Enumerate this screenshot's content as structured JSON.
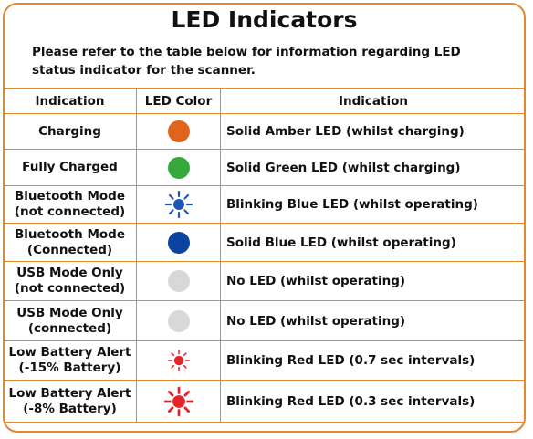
{
  "title": "LED Indicators",
  "intro": "Please refer to the table below for information regarding LED status indicator for the scanner.",
  "headers": {
    "indication": "Indication",
    "led_color": "LED Color",
    "description": "Indication"
  },
  "colors": {
    "border": "#e4892b",
    "amber": "#e0641c",
    "green": "#36a93c",
    "blue": "#0a43a0",
    "blue_blink": "#1d57b5",
    "grey": "#d8d8d8",
    "red": "#e8232a"
  },
  "rows": [
    {
      "line1": "Charging",
      "line2": "",
      "led": "amber-solid",
      "description": "Solid Amber LED (whilst charging)"
    },
    {
      "line1": "Fully Charged",
      "line2": "",
      "led": "green-solid",
      "description": "Solid Green LED (whilst charging)"
    },
    {
      "line1": "Bluetooth Mode",
      "line2": "(not connected)",
      "led": "blue-blinking",
      "description": "Blinking Blue LED (whilst operating)"
    },
    {
      "line1": "Bluetooth Mode",
      "line2": "(Connected)",
      "led": "blue-solid",
      "description": "Solid Blue LED (whilst operating)"
    },
    {
      "line1": "USB Mode Only",
      "line2": "(not connected)",
      "led": "off",
      "description": "No LED (whilst operating)"
    },
    {
      "line1": "USB Mode Only",
      "line2": "(connected)",
      "led": "off",
      "description": "No LED (whilst operating)"
    },
    {
      "line1": "Low Battery Alert",
      "line2": "(-15% Battery)",
      "led": "red-blinking",
      "description": "Blinking Red LED (0.7 sec intervals)"
    },
    {
      "line1": "Low Battery Alert",
      "line2": "(-8% Battery)",
      "led": "red-blinking",
      "description": "Blinking Red LED (0.3 sec intervals)"
    }
  ]
}
